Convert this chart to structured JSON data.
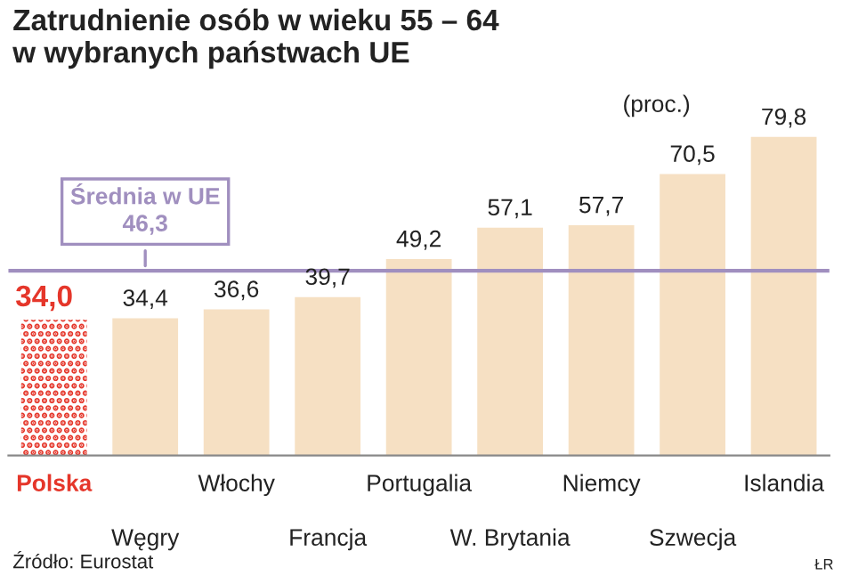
{
  "chart_data": {
    "type": "bar",
    "title": "Zatrudnienie osób w wieku 55 – 64\nw wybranych państwach UE",
    "categories": [
      "Polska",
      "Węgry",
      "Włochy",
      "Francja",
      "Portugalia",
      "W. Brytania",
      "Niemcy",
      "Szwecja",
      "Islandia"
    ],
    "values": [
      34.0,
      34.4,
      36.6,
      39.7,
      49.2,
      57.1,
      57.7,
      70.5,
      79.8
    ],
    "value_labels": [
      "34,0",
      "34,4",
      "36,6",
      "39,7",
      "49,2",
      "57,1",
      "57,7",
      "70,5",
      "79,8"
    ],
    "colors": [
      "#e5362a",
      "#f6e0c3",
      "#f6e0c3",
      "#f6e0c3",
      "#f6e0c3",
      "#f6e0c3",
      "#f6e0c3",
      "#f6e0c3",
      "#f6e0c3"
    ],
    "ref_lines": [
      {
        "axis": "y",
        "value": 46.3,
        "label": "Średnia w UE\n46,3",
        "color": "#a08fbf"
      }
    ],
    "annotations": [
      "(proc.)",
      "Źródło: Eurostat",
      "ŁR"
    ],
    "grid": false
  }
}
